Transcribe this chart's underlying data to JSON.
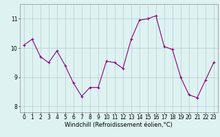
{
  "x": [
    0,
    1,
    2,
    3,
    4,
    5,
    6,
    7,
    8,
    9,
    10,
    11,
    12,
    13,
    14,
    15,
    16,
    17,
    18,
    19,
    20,
    21,
    22,
    23
  ],
  "y": [
    10.1,
    10.3,
    9.7,
    9.5,
    9.9,
    9.4,
    8.8,
    8.35,
    8.65,
    8.65,
    9.55,
    9.5,
    9.3,
    10.3,
    10.95,
    11.0,
    11.1,
    10.05,
    9.95,
    9.0,
    8.4,
    8.3,
    8.9,
    9.5
  ],
  "line_color": "#800080",
  "marker": "+",
  "marker_size": 3,
  "background_color": "#dff2f2",
  "grid_color": "#b0cece",
  "xlabel": "Windchill (Refroidissement éolien,°C)",
  "xlabel_fontsize": 6,
  "xtick_labels": [
    "0",
    "1",
    "2",
    "3",
    "4",
    "5",
    "6",
    "7",
    "8",
    "9",
    "10",
    "11",
    "12",
    "13",
    "14",
    "15",
    "16",
    "17",
    "18",
    "19",
    "20",
    "21",
    "22",
    "23"
  ],
  "ytick_labels": [
    "8",
    "9",
    "10",
    "11"
  ],
  "yticks": [
    8,
    9,
    10,
    11
  ],
  "ylim": [
    7.8,
    11.5
  ],
  "xlim": [
    -0.5,
    23.5
  ],
  "tick_fontsize": 5.5,
  "grid_linewidth": 0.5
}
